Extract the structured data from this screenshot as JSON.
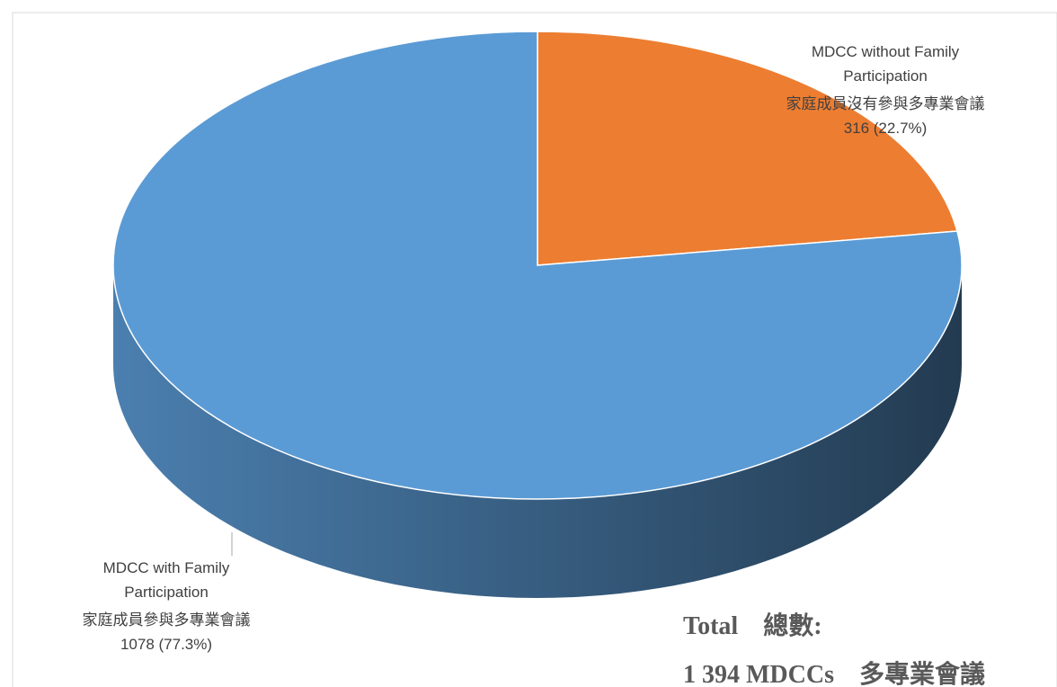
{
  "chart_data": {
    "type": "pie",
    "style": "3d",
    "categories": [
      "MDCC without Family Participation",
      "MDCC with Family Participation"
    ],
    "categories_zh": [
      "家庭成員沒有參與多專業會議",
      "家庭成員參與多專業會議"
    ],
    "values": [
      316,
      1078
    ],
    "value_labels": [
      "316 (22.7%)",
      "1078 (77.3%)"
    ],
    "colors": [
      "#ed7d31",
      "#5b9bd5"
    ],
    "annotations": [
      "Total　總數:",
      "1 394 MDCCs　多專業會議"
    ]
  }
}
